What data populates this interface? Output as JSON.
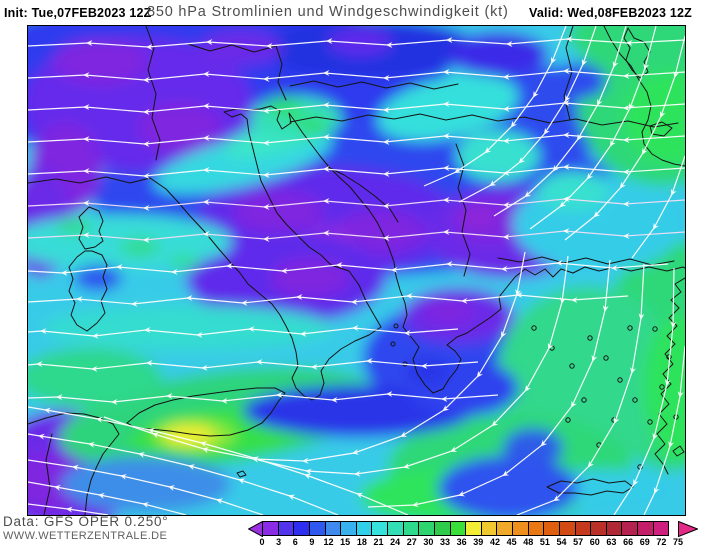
{
  "header": {
    "init": "Init: Tue,07FEB2023 12Z",
    "title": "850 hPa Stromlinien und Windgeschwindigkeit (kt)",
    "valid": "Valid: Wed,08FEB2023 12Z"
  },
  "footer": {
    "data_source": "Data: GFS OPER 0.250°",
    "website": "WWW.WETTERZENTRALE.DE"
  },
  "colorbar": {
    "unit": "kt",
    "tick_labels": [
      "0",
      "3",
      "6",
      "9",
      "12",
      "15",
      "18",
      "21",
      "24",
      "27",
      "30",
      "33",
      "36",
      "39",
      "42",
      "45",
      "48",
      "51",
      "54",
      "57",
      "60",
      "63",
      "66",
      "69",
      "72",
      "75"
    ],
    "cell_colors": [
      "#8C2BE6",
      "#5233EE",
      "#2E2EF0",
      "#2E58EE",
      "#3E8AEE",
      "#38B2EE",
      "#30CFEA",
      "#35E3DC",
      "#32DFB5",
      "#2EDB8C",
      "#2ED46E",
      "#2ECC4A",
      "#38E038",
      "#F2EE35",
      "#F0C930",
      "#F0A928",
      "#EE8F1E",
      "#E87714",
      "#E05F0E",
      "#D24A14",
      "#C53A1E",
      "#BA3028",
      "#B02834",
      "#B52250",
      "#C21F68",
      "#CF1F7E"
    ],
    "left_arrow_color": "#9B30E0",
    "right_arrow_color": "#E22A86"
  },
  "map": {
    "field_palette": {
      "calm_violet": "#6B2BE8",
      "light_blue": "#2E42EE",
      "moderate_cyan": "#38CBE8",
      "fresh_green": "#2ED878",
      "strong_yellow": "#F2EE35"
    },
    "streamline_color": "#ffffff",
    "coastline_color": "#141414"
  }
}
